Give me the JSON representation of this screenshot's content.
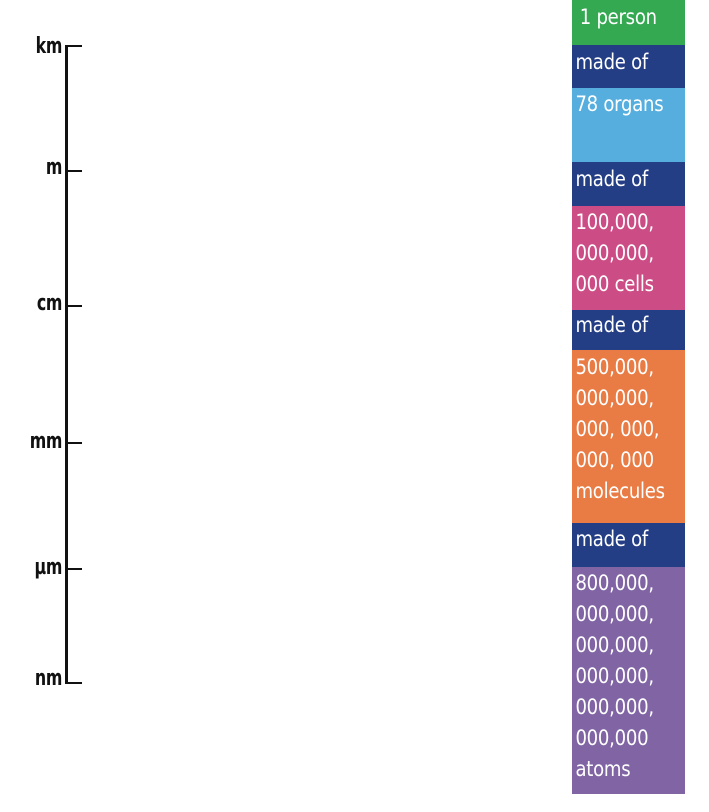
{
  "scale": {
    "units": [
      {
        "label": "km"
      },
      {
        "label": "m"
      },
      {
        "label": "cm"
      },
      {
        "label": "mm"
      },
      {
        "label": "µm"
      },
      {
        "label": "nm"
      }
    ]
  },
  "stack": {
    "blocks": [
      {
        "text": "1 person",
        "color": "#35a852"
      },
      {
        "text": "made of",
        "color": "#243e86"
      },
      {
        "text": "78 organs",
        "color": "#55aedd"
      },
      {
        "text": "made of",
        "color": "#243e86"
      },
      {
        "text": "100,000,\n000,000,\n000 cells",
        "color": "#cc4d85"
      },
      {
        "text": "made of",
        "color": "#243e86"
      },
      {
        "text": "500,000,\n000,000,\n000, 000,\n000, 000\nmolecules",
        "color": "#e97b44"
      },
      {
        "text": "made of",
        "color": "#243e86"
      },
      {
        "text": "800,000,\n000,000,\n000,000,\n000,000,\n000,000,\n000,000\natoms",
        "color": "#8064a4"
      }
    ]
  }
}
